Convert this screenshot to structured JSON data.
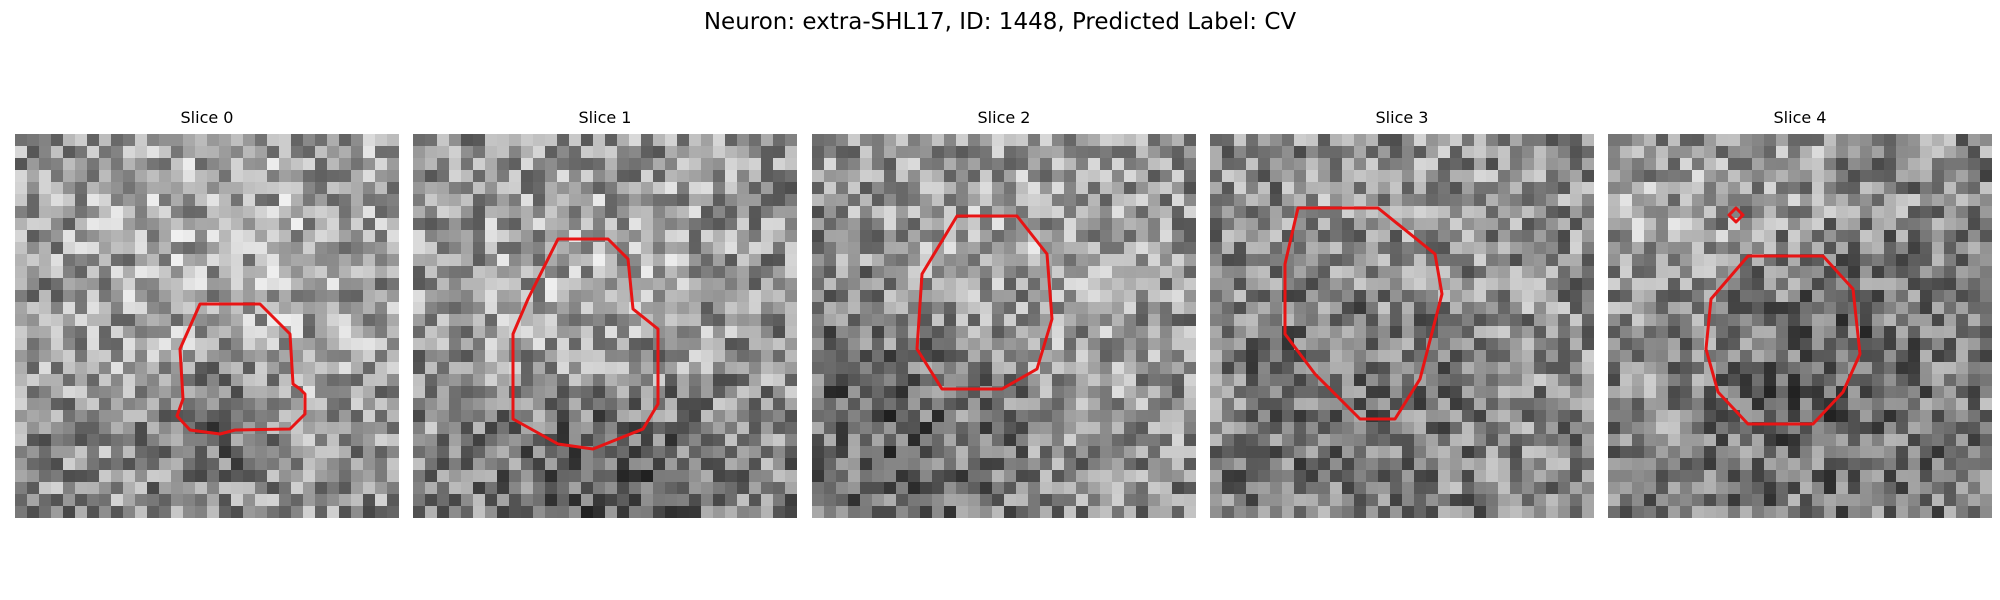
{
  "figure": {
    "title": "Neuron: extra-SHL17, ID: 1448, Predicted Label: CV"
  },
  "slices": [
    {
      "label": "Slice 0"
    },
    {
      "label": "Slice 1"
    },
    {
      "label": "Slice 2"
    },
    {
      "label": "Slice 3"
    },
    {
      "label": "Slice 4"
    }
  ],
  "colors": {
    "contour": "#e81414",
    "background": "#ffffff"
  }
}
